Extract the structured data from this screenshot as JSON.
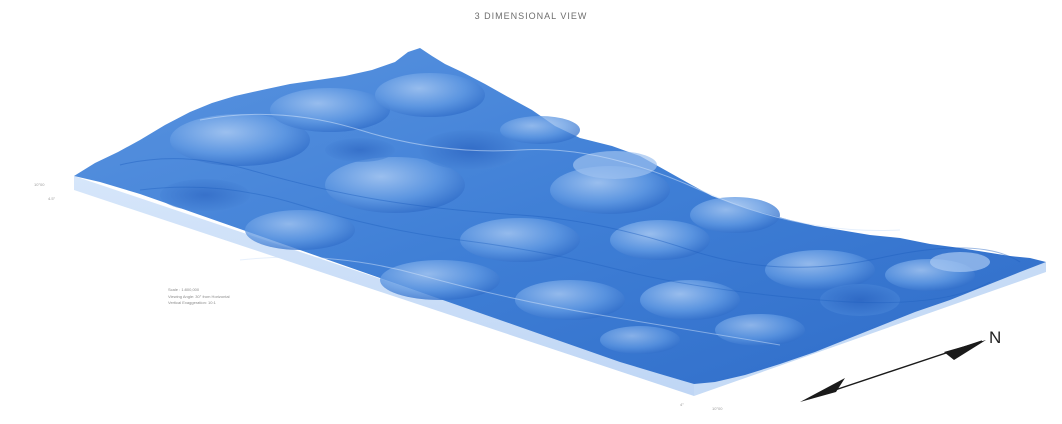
{
  "title": "3 DIMENSIONAL VIEW",
  "info_lines": [
    "Scale : 1:800,000",
    "Viewing Angle: 30° from Horizontal",
    "Vertical Exaggeration: 10:1"
  ],
  "edge_labels": {
    "left_top": "10°00",
    "left_bottom": "4.5°",
    "bottom_a": "4°",
    "bottom_b": "10°00"
  },
  "north": "N",
  "colors": {
    "terrain": "#3f7fd6",
    "terrain_light": "#8fb8ee",
    "terrain_dark": "#1f5fbf",
    "base": "#cfe0f8",
    "arrow": "#1a1a1a"
  }
}
